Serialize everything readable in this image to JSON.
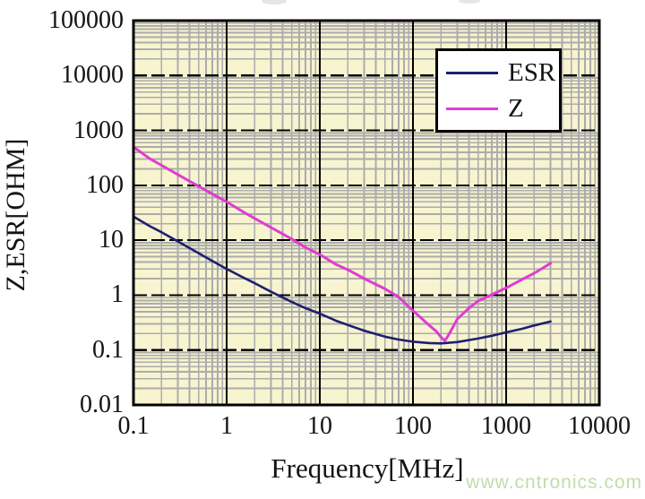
{
  "figure": {
    "watermark": "www.cntronics.com",
    "colors": {
      "plot_bg": "#F7F4CF",
      "minor_grid": "#ACACAC",
      "major_grid": "#000000",
      "border": "#000000",
      "esr_line": "#1F1F70",
      "z_line": "#E03CD2",
      "watermark": "#C2DCAB",
      "tick_text": "#141414"
    },
    "legend": {
      "items": [
        {
          "label": "ESR",
          "color": "#1F1F70"
        },
        {
          "label": "Z",
          "color": "#E03CD2"
        }
      ]
    }
  },
  "chart_data": {
    "type": "line",
    "title": "",
    "xlabel": "Frequency[MHz]",
    "ylabel": "Z,ESR[OHM]",
    "x_scale": "log",
    "y_scale": "log",
    "xlim": [
      0.1,
      10000
    ],
    "ylim": [
      0.01,
      100000
    ],
    "x_ticks": [
      "0.1",
      "1",
      "10",
      "100",
      "1000",
      "10000"
    ],
    "y_ticks": [
      "100000",
      "10000",
      "1000",
      "100",
      "10",
      "1",
      "0.1",
      "0.01"
    ],
    "grid": "major black (vertical solid, horizontal dashed) + gray log minor grid",
    "legend_position": "top-right",
    "series": [
      {
        "name": "ESR",
        "color": "#1F1F70",
        "units": {
          "x": "MHz",
          "y": "Ohm"
        },
        "points": [
          [
            0.1,
            27
          ],
          [
            0.15,
            18
          ],
          [
            0.2,
            14
          ],
          [
            0.3,
            9.5
          ],
          [
            0.5,
            5.8
          ],
          [
            0.7,
            4.2
          ],
          [
            1,
            3.0
          ],
          [
            1.5,
            2.1
          ],
          [
            2,
            1.65
          ],
          [
            3,
            1.15
          ],
          [
            5,
            0.75
          ],
          [
            7,
            0.58
          ],
          [
            10,
            0.46
          ],
          [
            15,
            0.34
          ],
          [
            20,
            0.285
          ],
          [
            30,
            0.225
          ],
          [
            50,
            0.175
          ],
          [
            70,
            0.155
          ],
          [
            100,
            0.142
          ],
          [
            150,
            0.134
          ],
          [
            200,
            0.132
          ],
          [
            300,
            0.14
          ],
          [
            500,
            0.162
          ],
          [
            700,
            0.182
          ],
          [
            1000,
            0.21
          ],
          [
            1500,
            0.245
          ],
          [
            2000,
            0.28
          ],
          [
            3000,
            0.33
          ]
        ]
      },
      {
        "name": "Z",
        "color": "#E03CD2",
        "units": {
          "x": "MHz",
          "y": "Ohm"
        },
        "points": [
          [
            0.1,
            500
          ],
          [
            0.15,
            305
          ],
          [
            0.2,
            232
          ],
          [
            0.3,
            157
          ],
          [
            0.5,
            96
          ],
          [
            0.7,
            70
          ],
          [
            1,
            50
          ],
          [
            1.5,
            33
          ],
          [
            2,
            25
          ],
          [
            3,
            17
          ],
          [
            5,
            10.5
          ],
          [
            7,
            7.4
          ],
          [
            10,
            5.5
          ],
          [
            15,
            3.6
          ],
          [
            20,
            2.9
          ],
          [
            30,
            2.0
          ],
          [
            50,
            1.3
          ],
          [
            70,
            0.93
          ],
          [
            100,
            0.52
          ],
          [
            150,
            0.28
          ],
          [
            180,
            0.215
          ],
          [
            200,
            0.172
          ],
          [
            210,
            0.158
          ],
          [
            220,
            0.148
          ],
          [
            235,
            0.175
          ],
          [
            250,
            0.21
          ],
          [
            300,
            0.37
          ],
          [
            400,
            0.58
          ],
          [
            500,
            0.78
          ],
          [
            700,
            1.02
          ],
          [
            1000,
            1.35
          ],
          [
            1500,
            1.95
          ],
          [
            2000,
            2.5
          ],
          [
            3000,
            3.8
          ]
        ]
      }
    ]
  }
}
